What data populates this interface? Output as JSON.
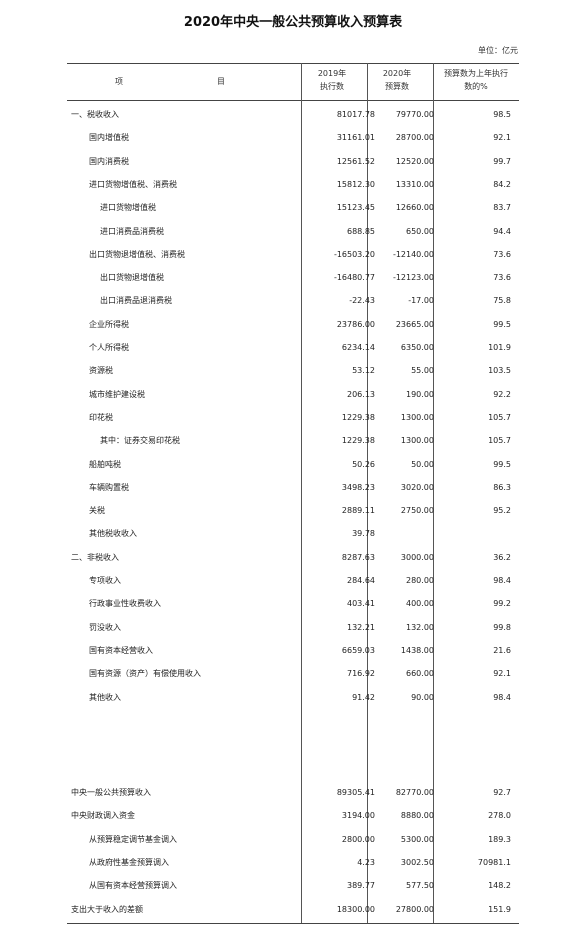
{
  "title": "2020年中央一般公共预算收入预算表",
  "unit": "单位：亿元",
  "headers": {
    "item": "项",
    "item2": "目",
    "col2019_line1": "2019年",
    "col2019_line2": "执行数",
    "col2020_line1": "2020年",
    "col2020_line2": "预算数",
    "pct_line1": "预算数为上年执行",
    "pct_line2": "数的%"
  },
  "rows": [
    {
      "name": "一、税收收入",
      "indent": 0,
      "y2019": "81017.78",
      "y2020": "79770.00",
      "pct": "98.5"
    },
    {
      "name": "国内增值税",
      "indent": 1,
      "y2019": "31161.01",
      "y2020": "28700.00",
      "pct": "92.1"
    },
    {
      "name": "国内消费税",
      "indent": 1,
      "y2019": "12561.52",
      "y2020": "12520.00",
      "pct": "99.7"
    },
    {
      "name": "进口货物增值税、消费税",
      "indent": 1,
      "y2019": "15812.30",
      "y2020": "13310.00",
      "pct": "84.2"
    },
    {
      "name": "进口货物增值税",
      "indent": 2,
      "y2019": "15123.45",
      "y2020": "12660.00",
      "pct": "83.7"
    },
    {
      "name": "进口消费品消费税",
      "indent": 2,
      "y2019": "688.85",
      "y2020": "650.00",
      "pct": "94.4"
    },
    {
      "name": "出口货物退增值税、消费税",
      "indent": 1,
      "y2019": "-16503.20",
      "y2020": "-12140.00",
      "pct": "73.6"
    },
    {
      "name": "出口货物退增值税",
      "indent": 2,
      "y2019": "-16480.77",
      "y2020": "-12123.00",
      "pct": "73.6"
    },
    {
      "name": "出口消费品退消费税",
      "indent": 2,
      "y2019": "-22.43",
      "y2020": "-17.00",
      "pct": "75.8"
    },
    {
      "name": "企业所得税",
      "indent": 1,
      "y2019": "23786.00",
      "y2020": "23665.00",
      "pct": "99.5"
    },
    {
      "name": "个人所得税",
      "indent": 1,
      "y2019": "6234.14",
      "y2020": "6350.00",
      "pct": "101.9"
    },
    {
      "name": "资源税",
      "indent": 1,
      "y2019": "53.12",
      "y2020": "55.00",
      "pct": "103.5"
    },
    {
      "name": "城市维护建设税",
      "indent": 1,
      "y2019": "206.13",
      "y2020": "190.00",
      "pct": "92.2"
    },
    {
      "name": "印花税",
      "indent": 1,
      "y2019": "1229.38",
      "y2020": "1300.00",
      "pct": "105.7"
    },
    {
      "name": "其中：证券交易印花税",
      "indent": 2,
      "y2019": "1229.38",
      "y2020": "1300.00",
      "pct": "105.7"
    },
    {
      "name": "船舶吨税",
      "indent": 1,
      "y2019": "50.26",
      "y2020": "50.00",
      "pct": "99.5"
    },
    {
      "name": "车辆购置税",
      "indent": 1,
      "y2019": "3498.23",
      "y2020": "3020.00",
      "pct": "86.3"
    },
    {
      "name": "关税",
      "indent": 1,
      "y2019": "2889.11",
      "y2020": "2750.00",
      "pct": "95.2"
    },
    {
      "name": "其他税收收入",
      "indent": 1,
      "y2019": "39.78",
      "y2020": "",
      "pct": ""
    },
    {
      "name": "二、非税收入",
      "indent": 0,
      "y2019": "8287.63",
      "y2020": "3000.00",
      "pct": "36.2"
    },
    {
      "name": "专项收入",
      "indent": 1,
      "y2019": "284.64",
      "y2020": "280.00",
      "pct": "98.4"
    },
    {
      "name": "行政事业性收费收入",
      "indent": 1,
      "y2019": "403.41",
      "y2020": "400.00",
      "pct": "99.2"
    },
    {
      "name": "罚没收入",
      "indent": 1,
      "y2019": "132.21",
      "y2020": "132.00",
      "pct": "99.8"
    },
    {
      "name": "国有资本经营收入",
      "indent": 1,
      "y2019": "6659.03",
      "y2020": "1438.00",
      "pct": "21.6"
    },
    {
      "name": "国有资源（资产）有偿使用收入",
      "indent": 1,
      "y2019": "716.92",
      "y2020": "660.00",
      "pct": "92.1"
    },
    {
      "name": "其他收入",
      "indent": 1,
      "y2019": "91.42",
      "y2020": "90.00",
      "pct": "98.4"
    }
  ],
  "summary_rows": [
    {
      "name": "中央一般公共预算收入",
      "indent": 0,
      "y2019": "89305.41",
      "y2020": "82770.00",
      "pct": "92.7"
    },
    {
      "name": "中央财政调入资金",
      "indent": 0,
      "y2019": "3194.00",
      "y2020": "8880.00",
      "pct": "278.0"
    },
    {
      "name": "从预算稳定调节基金调入",
      "indent": 1,
      "y2019": "2800.00",
      "y2020": "5300.00",
      "pct": "189.3"
    },
    {
      "name": "从政府性基金预算调入",
      "indent": 1,
      "y2019": "4.23",
      "y2020": "3002.50",
      "pct": "70981.1"
    },
    {
      "name": "从国有资本经营预算调入",
      "indent": 1,
      "y2019": "389.77",
      "y2020": "577.50",
      "pct": "148.2"
    },
    {
      "name": "支出大于收入的差额",
      "indent": 0,
      "y2019": "18300.00",
      "y2020": "27800.00",
      "pct": "151.9"
    }
  ]
}
